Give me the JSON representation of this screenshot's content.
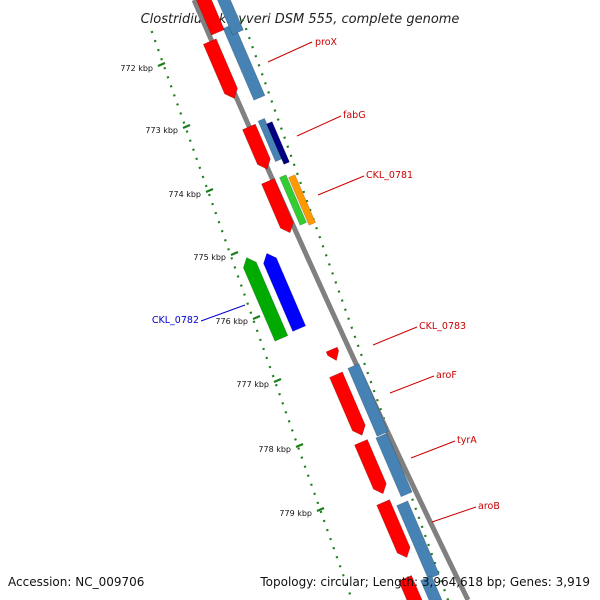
{
  "title": "Clostridium kluyveri DSM 555, complete genome",
  "footer": {
    "accession": "Accession: NC_009706",
    "stats": "Topology: circular; Length: 3,964,618 bp; Genes: 3,919"
  },
  "colors": {
    "backbone": "#808080",
    "tick": "#1a7f1a",
    "cds_forward": "#ff0000",
    "cds_reverse": "#00aa00",
    "label_forward": "#cc0000",
    "label_reverse": "#0000cc",
    "feature_blue": "#4682b4",
    "feature_navy": "#000080",
    "feature_green": "#33cc33",
    "feature_orange": "#ff9900",
    "feature_bright_blue": "#0000ff"
  },
  "kbp_labels": [
    "772 kbp",
    "773 kbp",
    "774 kbp",
    "775 kbp",
    "776 kbp",
    "777 kbp",
    "778 kbp",
    "779 kbp"
  ],
  "genes": [
    {
      "name": "proX",
      "strand": "forward"
    },
    {
      "name": "fabG",
      "strand": "forward"
    },
    {
      "name": "CKL_0781",
      "strand": "forward"
    },
    {
      "name": "CKL_0782",
      "strand": "reverse"
    },
    {
      "name": "CKL_0783",
      "strand": "forward"
    },
    {
      "name": "aroF",
      "strand": "forward"
    },
    {
      "name": "tyrA",
      "strand": "forward"
    },
    {
      "name": "aroB",
      "strand": "forward"
    }
  ]
}
